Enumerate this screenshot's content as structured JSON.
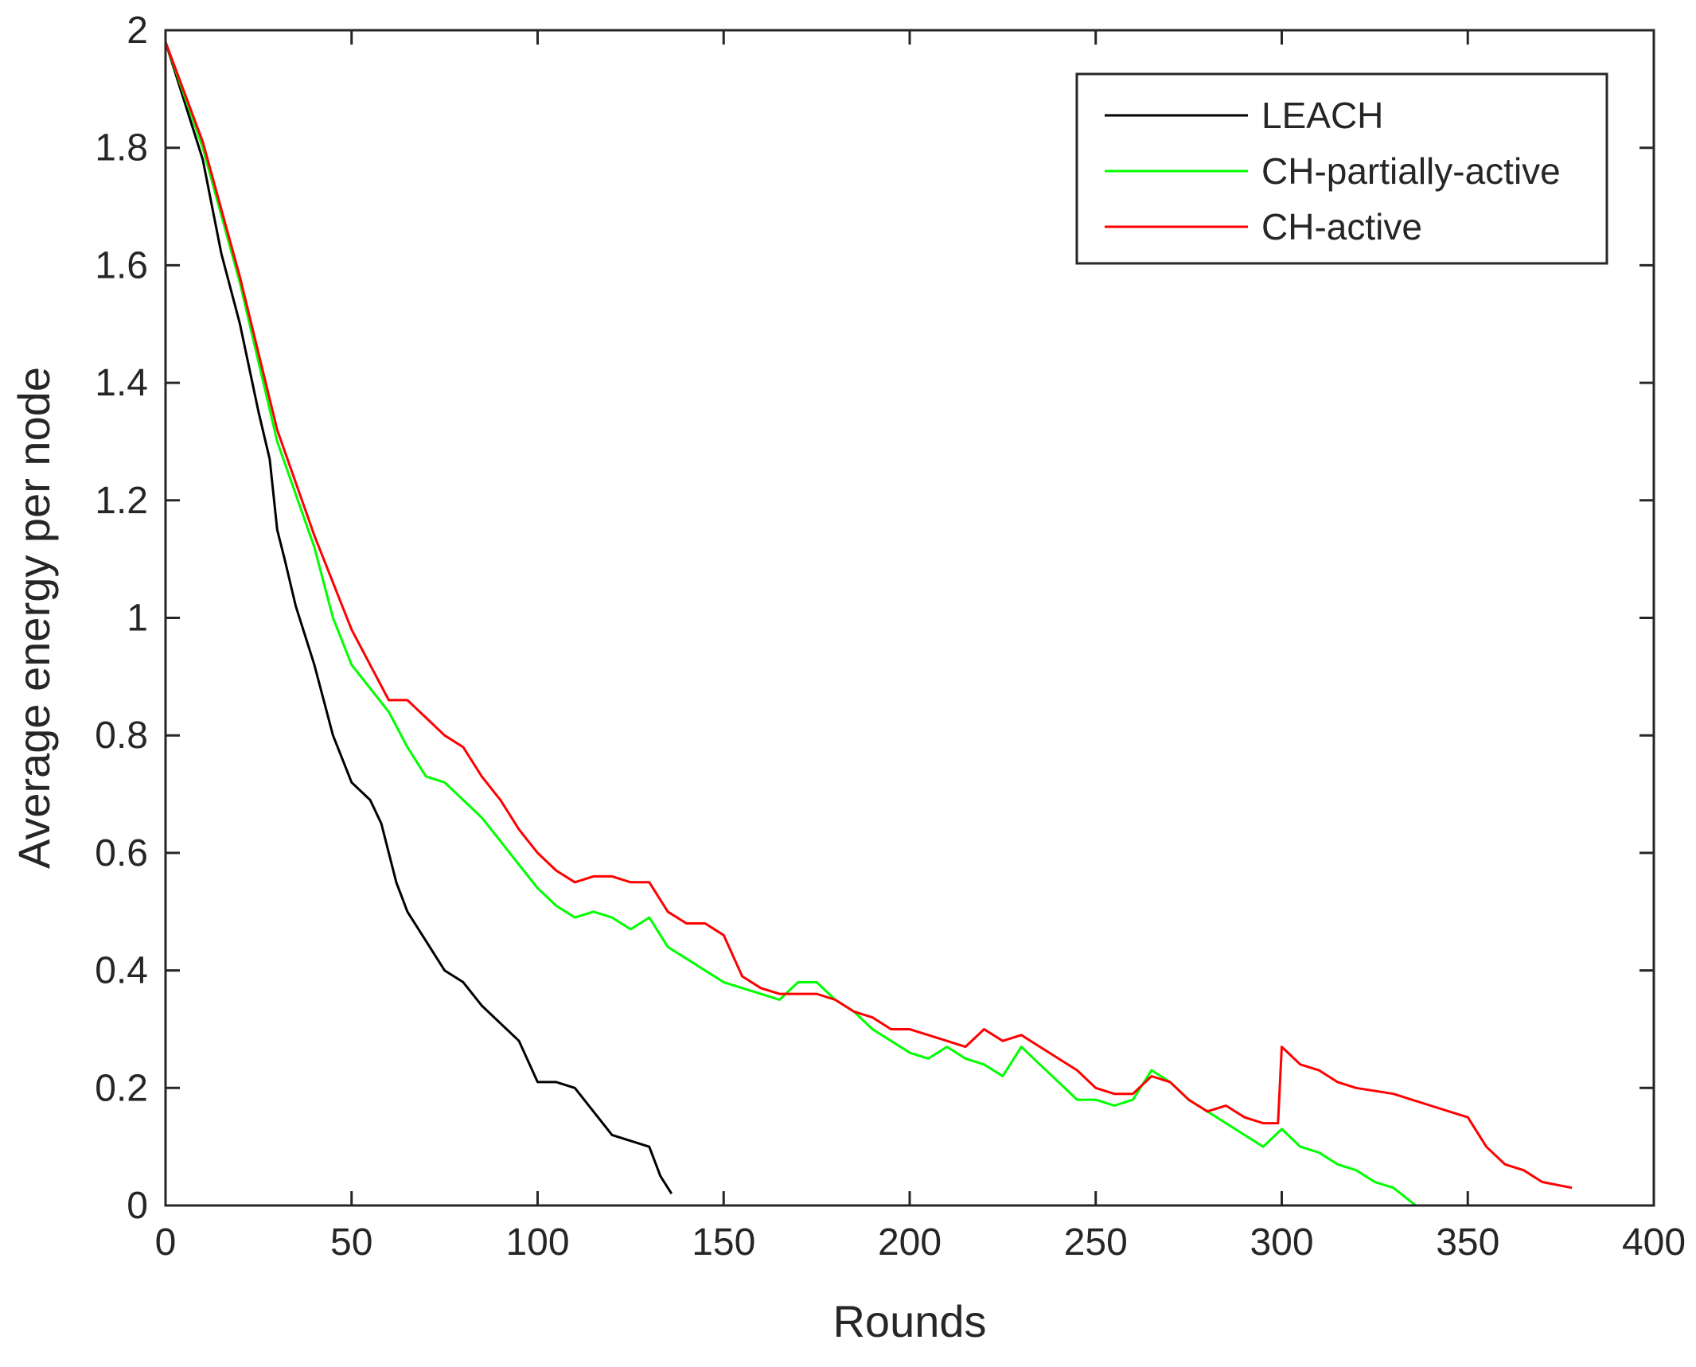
{
  "chart_data": {
    "type": "line",
    "title": "",
    "xlabel": "Rounds",
    "ylabel": "Average energy per node",
    "xlim": [
      0,
      400
    ],
    "ylim": [
      0,
      2
    ],
    "xticks": [
      0,
      50,
      100,
      150,
      200,
      250,
      300,
      350,
      400
    ],
    "xtick_labels": [
      "0",
      "50",
      "100",
      "150",
      "200",
      "250",
      "300",
      "350",
      "400"
    ],
    "yticks": [
      0,
      0.2,
      0.4,
      0.6,
      0.8,
      1,
      1.2,
      1.4,
      1.6,
      1.8,
      2
    ],
    "ytick_labels": [
      "0",
      "0.2",
      "0.4",
      "0.6",
      "0.8",
      "1",
      "1.2",
      "1.4",
      "1.6",
      "1.8",
      "2"
    ],
    "grid": false,
    "legend_position": "top-right",
    "series": [
      {
        "name": "LEACH",
        "color": "#000000",
        "x": [
          0,
          5,
          10,
          15,
          20,
          25,
          28,
          30,
          32,
          35,
          40,
          45,
          50,
          55,
          58,
          60,
          62,
          65,
          70,
          75,
          80,
          85,
          90,
          95,
          100,
          105,
          110,
          115,
          120,
          125,
          130,
          133,
          136
        ],
        "y": [
          1.98,
          1.88,
          1.78,
          1.62,
          1.5,
          1.35,
          1.27,
          1.15,
          1.1,
          1.02,
          0.92,
          0.8,
          0.72,
          0.69,
          0.65,
          0.6,
          0.55,
          0.5,
          0.45,
          0.4,
          0.38,
          0.34,
          0.31,
          0.28,
          0.21,
          0.21,
          0.2,
          0.16,
          0.12,
          0.11,
          0.1,
          0.05,
          0.02
        ]
      },
      {
        "name": "CH-partially-active",
        "color": "#00ff00",
        "x": [
          0,
          10,
          20,
          30,
          40,
          45,
          50,
          55,
          60,
          65,
          70,
          75,
          80,
          85,
          90,
          95,
          100,
          105,
          110,
          115,
          120,
          125,
          130,
          135,
          140,
          145,
          150,
          155,
          160,
          165,
          170,
          175,
          180,
          185,
          190,
          195,
          200,
          205,
          210,
          215,
          220,
          225,
          230,
          235,
          240,
          245,
          250,
          255,
          260,
          265,
          270,
          275,
          280,
          285,
          290,
          295,
          300,
          305,
          310,
          315,
          320,
          325,
          330,
          336
        ],
        "y": [
          1.98,
          1.8,
          1.57,
          1.3,
          1.12,
          1.0,
          0.92,
          0.88,
          0.84,
          0.78,
          0.73,
          0.72,
          0.69,
          0.66,
          0.62,
          0.58,
          0.54,
          0.51,
          0.49,
          0.5,
          0.49,
          0.47,
          0.49,
          0.44,
          0.42,
          0.4,
          0.38,
          0.37,
          0.36,
          0.35,
          0.38,
          0.38,
          0.35,
          0.33,
          0.3,
          0.28,
          0.26,
          0.25,
          0.27,
          0.25,
          0.24,
          0.22,
          0.27,
          0.24,
          0.21,
          0.18,
          0.18,
          0.17,
          0.18,
          0.23,
          0.21,
          0.18,
          0.16,
          0.14,
          0.12,
          0.1,
          0.13,
          0.1,
          0.09,
          0.07,
          0.06,
          0.04,
          0.03,
          0.0
        ]
      },
      {
        "name": "CH-active",
        "color": "#ff0000",
        "x": [
          0,
          10,
          20,
          30,
          40,
          45,
          50,
          55,
          60,
          65,
          70,
          75,
          80,
          85,
          90,
          95,
          100,
          105,
          110,
          115,
          120,
          125,
          130,
          135,
          140,
          145,
          150,
          155,
          160,
          165,
          170,
          175,
          180,
          185,
          190,
          195,
          200,
          205,
          210,
          215,
          220,
          225,
          230,
          235,
          240,
          245,
          250,
          255,
          260,
          265,
          270,
          275,
          280,
          285,
          290,
          295,
          299,
          300,
          305,
          310,
          315,
          320,
          330,
          340,
          350,
          355,
          360,
          365,
          370,
          378
        ],
        "y": [
          1.98,
          1.81,
          1.58,
          1.32,
          1.14,
          1.06,
          0.98,
          0.92,
          0.86,
          0.86,
          0.83,
          0.8,
          0.78,
          0.73,
          0.69,
          0.64,
          0.6,
          0.57,
          0.55,
          0.56,
          0.56,
          0.55,
          0.55,
          0.5,
          0.48,
          0.48,
          0.46,
          0.39,
          0.37,
          0.36,
          0.36,
          0.36,
          0.35,
          0.33,
          0.32,
          0.3,
          0.3,
          0.29,
          0.28,
          0.27,
          0.3,
          0.28,
          0.29,
          0.27,
          0.25,
          0.23,
          0.2,
          0.19,
          0.19,
          0.22,
          0.21,
          0.18,
          0.16,
          0.17,
          0.15,
          0.14,
          0.14,
          0.27,
          0.24,
          0.23,
          0.21,
          0.2,
          0.19,
          0.17,
          0.15,
          0.1,
          0.07,
          0.06,
          0.04,
          0.03
        ]
      }
    ]
  }
}
